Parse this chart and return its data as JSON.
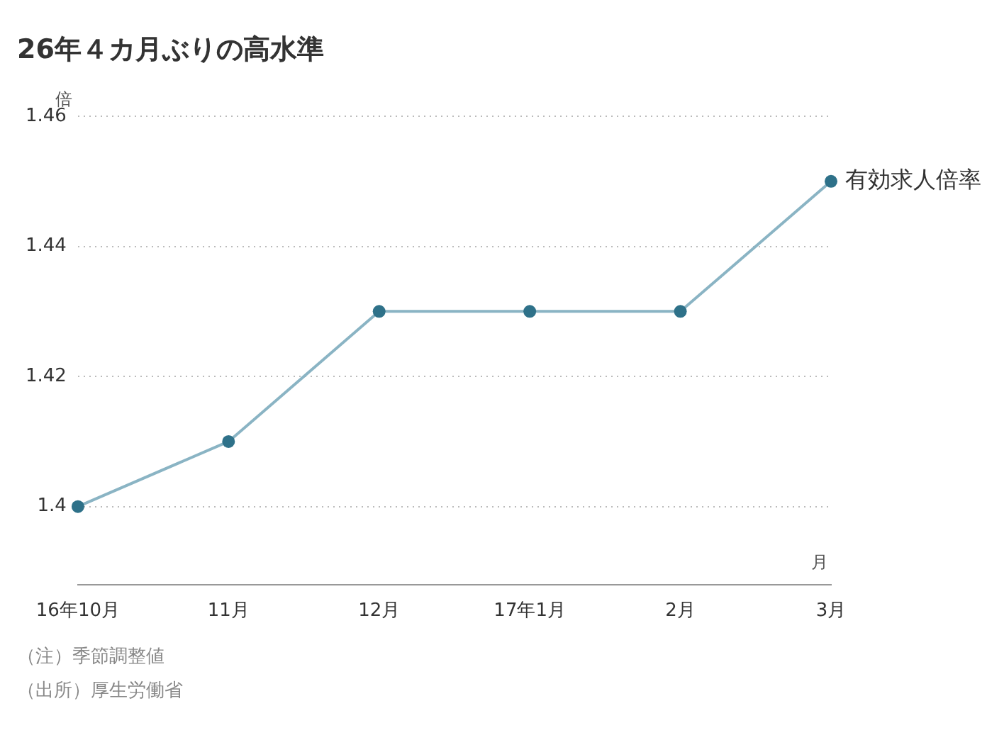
{
  "chart_data": {
    "type": "line",
    "title": "26年４カ月ぶりの高水準",
    "xlabel": "月",
    "ylabel": "倍",
    "categories": [
      "16年10月",
      "11月",
      "12月",
      "17年1月",
      "2月",
      "3月"
    ],
    "series": [
      {
        "name": "有効求人倍率",
        "color": "#8ab4c4",
        "values": [
          1.4,
          1.41,
          1.43,
          1.43,
          1.43,
          1.45
        ]
      }
    ],
    "marker": "circle",
    "ylim": [
      1.388,
      1.46
    ],
    "yticks": [
      1.4,
      1.42,
      1.44,
      1.46
    ],
    "grid": "y",
    "legend": false,
    "annotations": [
      "（注）季節調整値",
      "（出所）厚生労働省"
    ]
  }
}
